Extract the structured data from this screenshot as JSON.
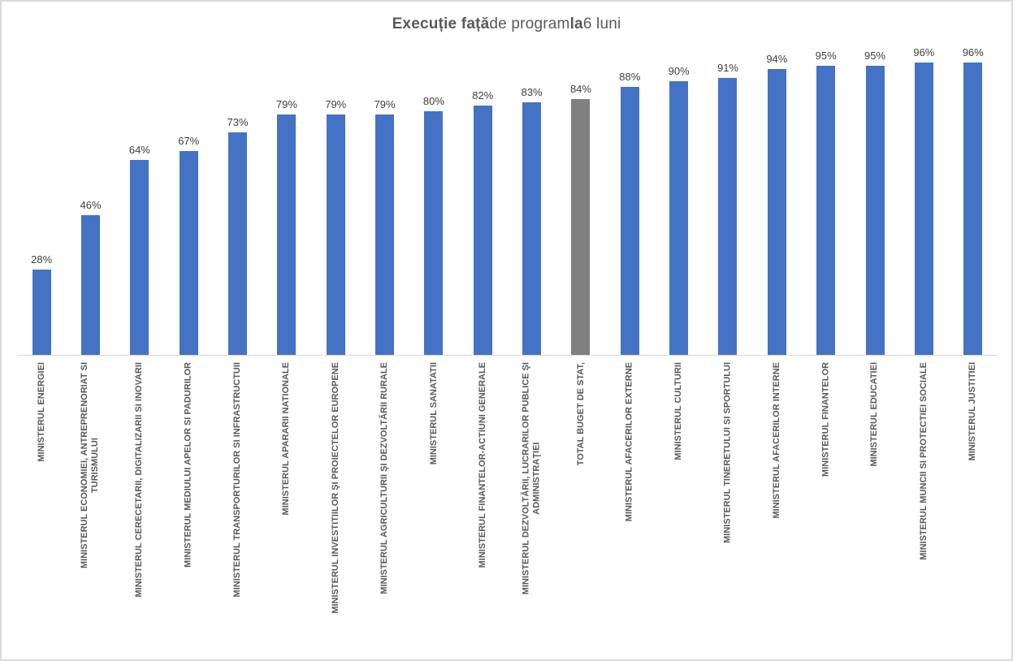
{
  "title": {
    "full": "Execuție față de program la 6 luni",
    "segments": [
      {
        "text": "Execuție față",
        "bold": true
      },
      {
        "text": " de program ",
        "bold": false
      },
      {
        "text": "la",
        "bold": true
      },
      {
        "text": " 6 luni",
        "bold": false
      }
    ]
  },
  "chart_data": {
    "type": "bar",
    "title": "Execuție față de program la 6 luni",
    "xlabel": "",
    "ylabel": "",
    "ylim": [
      0,
      100
    ],
    "unit": "percent",
    "grid": false,
    "legend": "none",
    "data_label_suffix": "%",
    "bar_color_default": "#4472C4",
    "bar_color_total": "#808080",
    "total_index": 11,
    "categories": [
      "MINISTERUL ENERGIEI",
      "MINISTERUL ECONOMIEI, ANTREPRENORIAT SI\nTURISMULUI",
      "MINISTERUL CERECETARII, DIGITALIZARII SI INOVARII",
      "MINISTERUL MEDIULUI APELOR SI PADURILOR",
      "MINISTERUL TRANSPORTURILOR SI INFRASTRUCTUII",
      "MINISTERUL APARARII NATIONALE",
      "MINISTERUL INVESTITIILOR ŞI PROIECTELOR EUROPENE",
      "MINISTERUL AGRICULTURII ŞI DEZVOLTĂRII RURALE",
      "MINISTERUL SANATATII",
      "MINISTERUL FINANTELOR-ACTIUNI GENERALE",
      "MINISTERUL DEZVOLTĂRII, LUCRARILOR PUBLICE ŞI\nADMINISTRAŢIEI",
      "TOTAL BUGET DE STAT,",
      "MINISTERUL AFACERILOR EXTERNE",
      "MINISTERUL CULTURII",
      "MINISTERUL TINERETULUI SI SPORTULUI",
      "MINISTERUL AFACERILOR INTERNE",
      "MINISTERUL FINANTELOR",
      "MINISTERUL EDUCATIEI",
      "MINISTERUL MUNCII SI PROTECTIEI SOCIALE",
      "MINISTERUL JUSTITIEI"
    ],
    "values": [
      28,
      46,
      64,
      67,
      73,
      79,
      79,
      79,
      80,
      82,
      83,
      84,
      88,
      90,
      91,
      94,
      95,
      95,
      96,
      96
    ],
    "data_labels": [
      "28%",
      "46%",
      "64%",
      "67%",
      "73%",
      "79%",
      "79%",
      "79%",
      "80%",
      "82%",
      "83%",
      "84%",
      "88%",
      "90%",
      "91%",
      "94%",
      "95%",
      "95%",
      "96%",
      "96%"
    ]
  }
}
